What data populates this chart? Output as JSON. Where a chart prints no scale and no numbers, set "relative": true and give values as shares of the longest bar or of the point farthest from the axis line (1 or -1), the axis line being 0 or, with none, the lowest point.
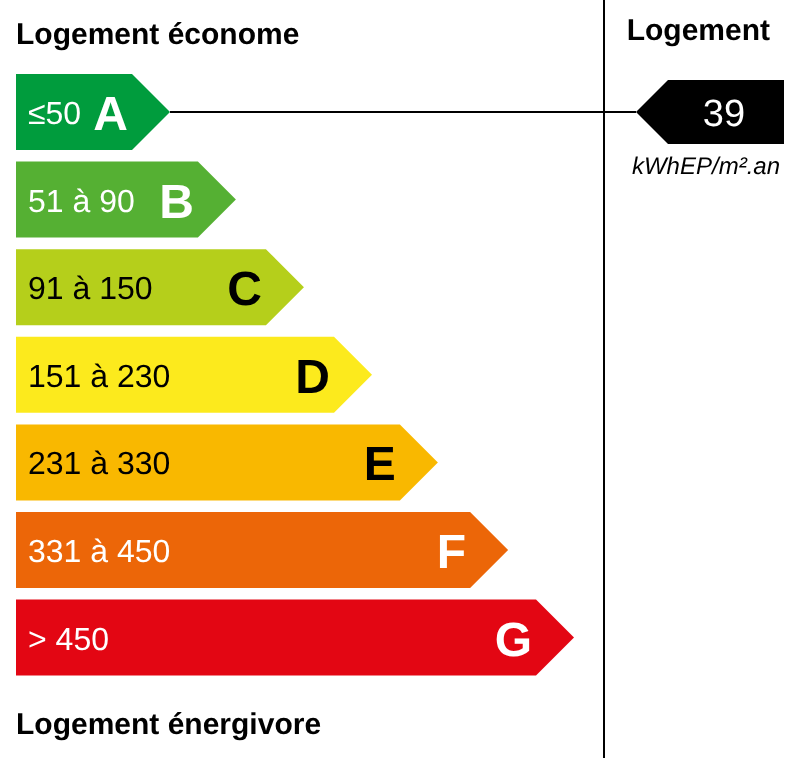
{
  "chart_data": {
    "type": "bar",
    "orientation": "horizontal",
    "relative": true,
    "title": "Logement économe",
    "categories": [
      "≤50 A",
      "51 à 90 B",
      "91 à 150 C",
      "151 à 230 D",
      "231 à 330 E",
      "331 à 450 F",
      "> 450 G"
    ],
    "values": [
      0.276,
      0.394,
      0.516,
      0.638,
      0.756,
      0.882,
      1
    ],
    "colors": [
      "#009c3d",
      "#55b033",
      "#b5cf1b",
      "#fcea1d",
      "#f9b800",
      "#ec6608",
      "#e30613"
    ],
    "annotations": [
      "39",
      "kWhEP/m².an",
      "Logement",
      "Logement énergivore"
    ]
  }
}
